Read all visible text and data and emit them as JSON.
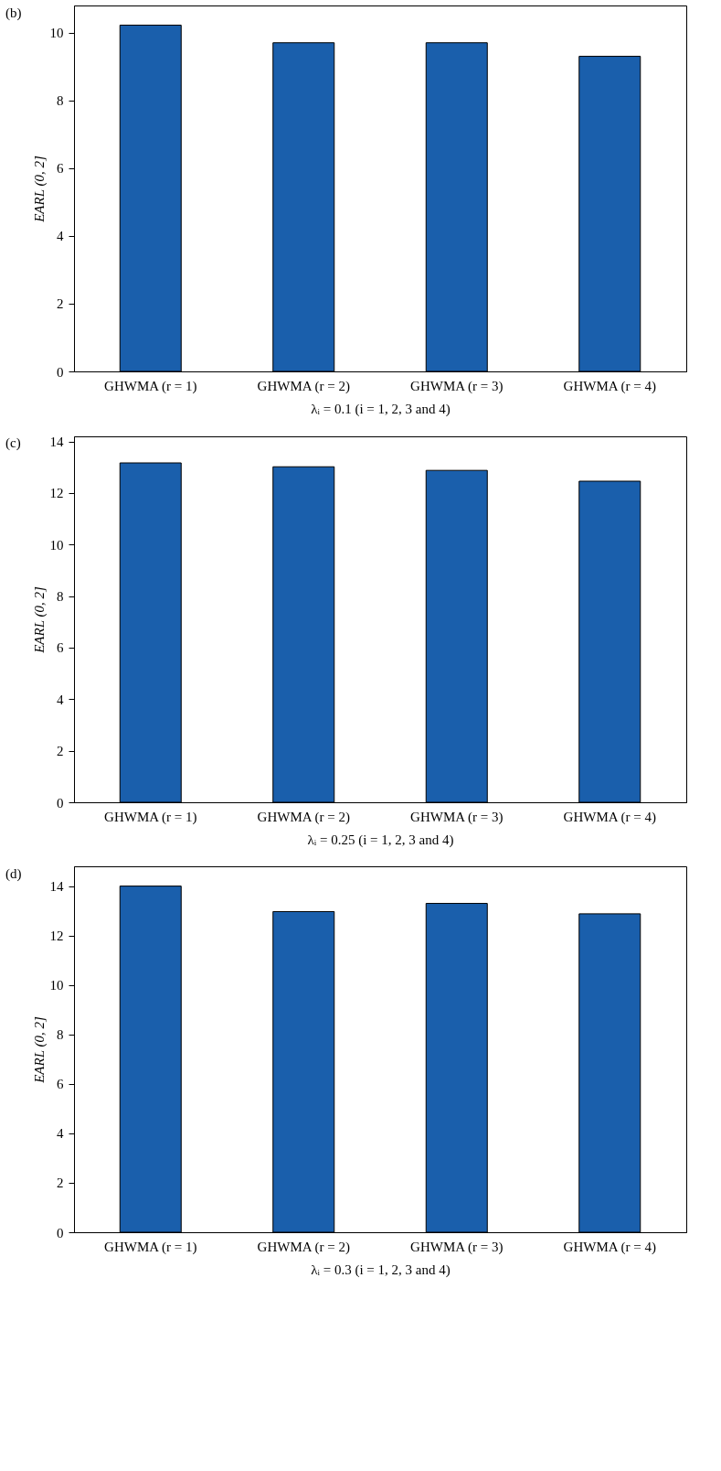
{
  "chart_data": [
    {
      "type": "bar",
      "title": "(b)",
      "xlabel": "λᵢ = 0.1 (i = 1, 2, 3 and 4)",
      "ylabel": "EARL (0, 2]",
      "categories": [
        "GHWMA (r = 1)",
        "GHWMA (r = 2)",
        "GHWMA (r = 3)",
        "GHWMA (r = 4)"
      ],
      "values": [
        10.22,
        9.7,
        9.7,
        9.3
      ],
      "color": "#1a5fac",
      "ylim": [
        0,
        10.8
      ],
      "yticks": [
        0,
        2,
        4,
        6,
        8,
        10
      ]
    },
    {
      "type": "bar",
      "title": "(c)",
      "xlabel": "λᵢ = 0.25 (i = 1, 2, 3 and 4)",
      "ylabel": "EARL (0, 2]",
      "categories": [
        "GHWMA (r = 1)",
        "GHWMA (r = 2)",
        "GHWMA (r = 3)",
        "GHWMA (r = 4)"
      ],
      "values": [
        13.17,
        13.02,
        12.88,
        12.46
      ],
      "color": "#1a5fac",
      "ylim": [
        0,
        14.2
      ],
      "yticks": [
        0,
        2,
        4,
        6,
        8,
        10,
        12,
        14
      ]
    },
    {
      "type": "bar",
      "title": "(d)",
      "xlabel": "λᵢ = 0.3 (i = 1, 2, 3 and 4)",
      "ylabel": "EARL (0, 2]",
      "categories": [
        "GHWMA (r = 1)",
        "GHWMA (r = 2)",
        "GHWMA (r = 3)",
        "GHWMA (r = 4)"
      ],
      "values": [
        14.0,
        12.97,
        13.3,
        12.88
      ],
      "color": "#1a5fac",
      "ylim": [
        0,
        14.8
      ],
      "yticks": [
        0,
        2,
        4,
        6,
        8,
        10,
        12,
        14
      ]
    }
  ]
}
